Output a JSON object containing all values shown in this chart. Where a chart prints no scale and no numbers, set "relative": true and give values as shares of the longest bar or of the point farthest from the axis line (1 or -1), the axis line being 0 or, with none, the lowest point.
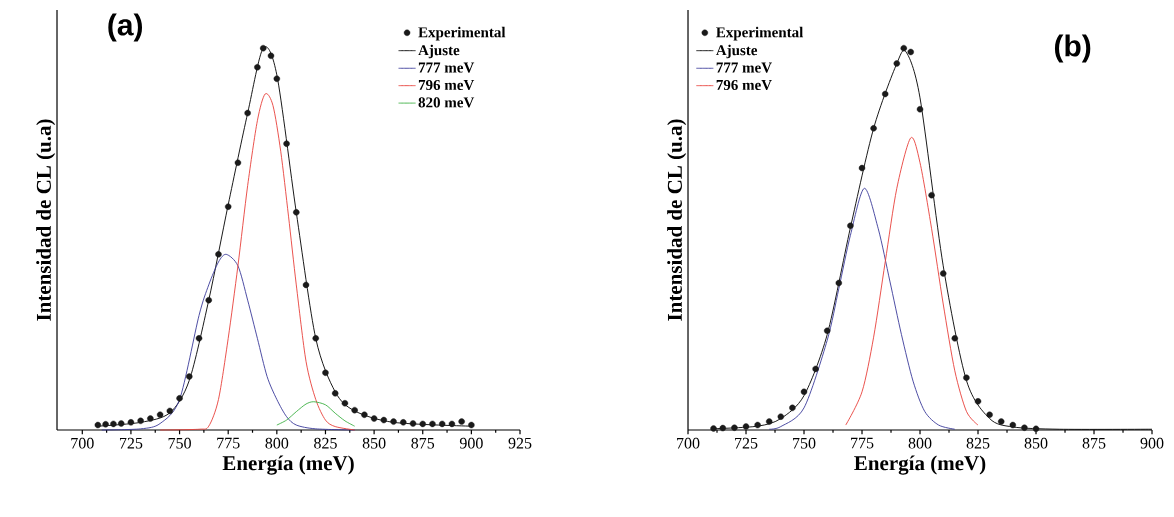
{
  "chart_data": [
    {
      "type": "line",
      "relative": true,
      "xlabel": "Energía (meV)",
      "ylabel": "Intensidad de CL (u.a)",
      "annotations": [
        "(a)"
      ],
      "legend": "top right",
      "xlim": [
        687,
        925
      ],
      "xticks": [
        700,
        725,
        750,
        775,
        800,
        825,
        850,
        875,
        900,
        925
      ],
      "series": [
        {
          "name": "Experimental",
          "type": "scatter",
          "color": "#1a1a1a",
          "x": [
            708,
            712,
            716,
            720,
            725,
            730,
            735,
            740,
            745,
            750,
            755,
            760,
            765,
            770,
            775,
            780,
            785,
            790,
            793,
            797,
            800,
            805,
            810,
            815,
            820,
            825,
            830,
            835,
            840,
            845,
            850,
            855,
            860,
            865,
            870,
            875,
            880,
            885,
            890,
            895,
            900
          ],
          "values": [
            0.013,
            0.015,
            0.016,
            0.017,
            0.02,
            0.024,
            0.03,
            0.04,
            0.05,
            0.083,
            0.14,
            0.24,
            0.34,
            0.46,
            0.585,
            0.7,
            0.83,
            0.95,
            1.0,
            0.98,
            0.92,
            0.75,
            0.57,
            0.38,
            0.24,
            0.15,
            0.096,
            0.07,
            0.052,
            0.04,
            0.03,
            0.026,
            0.022,
            0.02,
            0.017,
            0.016,
            0.016,
            0.016,
            0.016,
            0.022,
            0.013
          ]
        },
        {
          "name": "Ajuste",
          "color": "#000000",
          "x": [
            708,
            730,
            745,
            755,
            765,
            775,
            785,
            793,
            800,
            810,
            820,
            830,
            840,
            860,
            900
          ],
          "values": [
            0.01,
            0.02,
            0.045,
            0.13,
            0.34,
            0.59,
            0.83,
            1.0,
            0.93,
            0.57,
            0.24,
            0.1,
            0.05,
            0.02,
            0.01
          ]
        },
        {
          "name": "777 meV",
          "color": "#3a3a9a",
          "x": [
            710,
            730,
            740,
            750,
            760,
            765,
            770,
            774,
            780,
            785,
            790,
            795,
            800,
            805,
            810,
            820,
            840
          ],
          "values": [
            0,
            0.003,
            0.017,
            0.08,
            0.3,
            0.38,
            0.44,
            0.46,
            0.43,
            0.34,
            0.24,
            0.14,
            0.08,
            0.035,
            0.013,
            0.003,
            0
          ]
        },
        {
          "name": "796 meV",
          "color": "#e8403a",
          "x": [
            740,
            760,
            765,
            770,
            775,
            780,
            785,
            790,
            794,
            798,
            802,
            806,
            810,
            815,
            820,
            825,
            830,
            840
          ],
          "values": [
            0,
            0.002,
            0.01,
            0.08,
            0.24,
            0.43,
            0.64,
            0.81,
            0.88,
            0.85,
            0.73,
            0.56,
            0.38,
            0.18,
            0.08,
            0.026,
            0.009,
            0
          ]
        },
        {
          "name": "820 meV",
          "color": "#3cb043",
          "x": [
            800,
            805,
            810,
            815,
            819,
            825,
            830,
            835,
            840
          ],
          "values": [
            0.013,
            0.026,
            0.048,
            0.068,
            0.074,
            0.066,
            0.044,
            0.024,
            0.01
          ]
        }
      ]
    },
    {
      "type": "line",
      "relative": true,
      "xlabel": "Energía (meV)",
      "ylabel": "Intensidad de CL (u.a)",
      "annotations": [
        "(b)"
      ],
      "legend": "top left",
      "xlim": [
        700,
        900
      ],
      "xticks": [
        700,
        725,
        750,
        775,
        800,
        825,
        850,
        875,
        900
      ],
      "series": [
        {
          "name": "Experimental",
          "type": "scatter",
          "color": "#1a1a1a",
          "x": [
            711,
            715,
            720,
            725,
            730,
            735,
            740,
            745,
            750,
            755,
            760,
            765,
            770,
            775,
            780,
            785,
            790,
            793,
            796,
            800,
            805,
            810,
            815,
            820,
            825,
            830,
            835,
            840,
            845,
            850
          ],
          "values": [
            0.004,
            0.005,
            0.006,
            0.009,
            0.013,
            0.022,
            0.035,
            0.058,
            0.1,
            0.16,
            0.26,
            0.385,
            0.535,
            0.686,
            0.79,
            0.88,
            0.96,
            1.0,
            0.99,
            0.84,
            0.615,
            0.41,
            0.24,
            0.137,
            0.075,
            0.04,
            0.022,
            0.013,
            0.006,
            0.003
          ]
        },
        {
          "name": "Ajuste",
          "color": "#000000",
          "x": [
            710,
            730,
            740,
            750,
            760,
            770,
            780,
            790,
            794,
            800,
            810,
            820,
            830,
            840,
            860,
            900
          ],
          "values": [
            0.003,
            0.01,
            0.03,
            0.09,
            0.25,
            0.53,
            0.79,
            0.96,
            0.99,
            0.87,
            0.43,
            0.13,
            0.03,
            0.008,
            0.002,
            0.002
          ]
        },
        {
          "name": "777 meV",
          "color": "#3a3a9a",
          "x": [
            735,
            740,
            750,
            760,
            765,
            770,
            776,
            782,
            787,
            792,
            797,
            802,
            808,
            815
          ],
          "values": [
            0.002,
            0.009,
            0.058,
            0.235,
            0.37,
            0.51,
            0.633,
            0.527,
            0.39,
            0.25,
            0.128,
            0.049,
            0.013,
            0.002
          ]
        },
        {
          "name": "796 meV",
          "color": "#e8403a",
          "x": [
            768,
            775,
            780,
            785,
            790,
            796,
            800,
            805,
            810,
            815,
            820,
            825
          ],
          "values": [
            0.013,
            0.1,
            0.243,
            0.44,
            0.633,
            0.765,
            0.7,
            0.527,
            0.33,
            0.155,
            0.049,
            0.013
          ]
        }
      ]
    }
  ]
}
